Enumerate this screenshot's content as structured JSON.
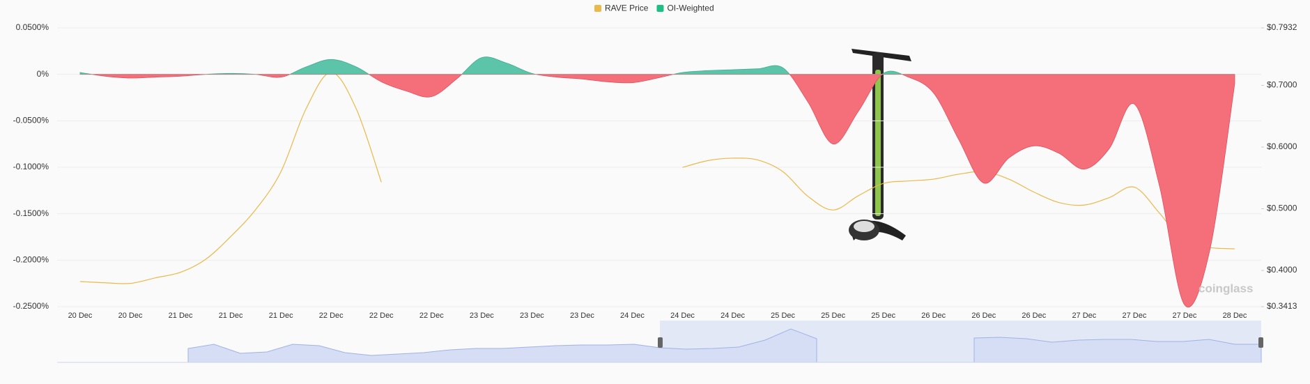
{
  "chart_data": {
    "type": "area-line",
    "watermark": "coinglass",
    "categories": [
      "20 Dec",
      null,
      "20 Dec",
      null,
      "21 Dec",
      null,
      "21 Dec",
      null,
      "21 Dec",
      null,
      "22 Dec",
      null,
      "22 Dec",
      null,
      "22 Dec",
      null,
      "23 Dec",
      null,
      "23 Dec",
      null,
      "23 Dec",
      null,
      "24 Dec",
      null,
      "24 Dec",
      null,
      "24 Dec",
      null,
      "25 Dec",
      null,
      "25 Dec",
      null,
      "25 Dec",
      null,
      "26 Dec",
      null,
      "26 Dec",
      null,
      "26 Dec",
      null,
      "27 Dec",
      null,
      "27 Dec",
      null,
      "27 Dec",
      null,
      "28 Dec"
    ],
    "series": [
      {
        "name": "RAVE Price",
        "color": "#e9b949",
        "axis": "y2",
        "values": [
          0.382,
          0.38,
          0.379,
          0.388,
          0.397,
          0.418,
          0.455,
          0.499,
          0.56,
          0.662,
          0.721,
          0.662,
          0.543,
          null,
          null,
          null,
          null,
          null,
          null,
          null,
          null,
          null,
          null,
          null,
          0.567,
          0.578,
          0.582,
          0.579,
          0.56,
          0.52,
          0.498,
          0.521,
          0.541,
          0.545,
          0.548,
          0.556,
          0.56,
          0.548,
          0.527,
          0.51,
          0.506,
          0.518,
          0.535,
          0.493,
          0.445,
          0.437,
          0.435
        ]
      },
      {
        "name": "OI-Weighted",
        "color": "#1dbf84",
        "positive_color": "#5cc4a8",
        "negative_color": "#f46f7a",
        "values": [
          0.002,
          -0.002,
          -0.004,
          -0.003,
          -0.002,
          0,
          0.001,
          0,
          -0.003,
          0.008,
          0.016,
          0.008,
          -0.008,
          -0.018,
          -0.024,
          -0.005,
          0.018,
          0.012,
          0.001,
          -0.003,
          -0.005,
          -0.008,
          -0.009,
          -0.004,
          0.002,
          0.004,
          0.005,
          0.006,
          0.007,
          -0.03,
          -0.075,
          -0.04,
          0.001,
          -0.003,
          -0.02,
          -0.07,
          -0.117,
          -0.09,
          -0.077,
          -0.085,
          -0.102,
          -0.08,
          -0.032,
          -0.12,
          -0.248,
          -0.19,
          -0.01
        ]
      }
    ],
    "ylim": [
      -0.25,
      0.05
    ],
    "yticks": [
      {
        "value": 0.05,
        "label": "0.0500%"
      },
      {
        "value": 0,
        "label": "0%"
      },
      {
        "value": -0.05,
        "label": "-0.0500%"
      },
      {
        "value": -0.1,
        "label": "-0.1000%"
      },
      {
        "value": -0.15,
        "label": "-0.1500%"
      },
      {
        "value": -0.2,
        "label": "-0.2000%"
      },
      {
        "value": -0.25,
        "label": "-0.2500%"
      }
    ],
    "y2lim": [
      0.3413,
      0.7932
    ],
    "y2ticks": [
      {
        "value": 0.7932,
        "label": "$0.7932"
      },
      {
        "value": 0.7,
        "label": "$0.7000"
      },
      {
        "value": 0.6,
        "label": "$0.6000"
      },
      {
        "value": 0.5,
        "label": "$0.5000"
      },
      {
        "value": 0.4,
        "label": "$0.4000"
      },
      {
        "value": 0.3413,
        "label": "$0.3413"
      }
    ],
    "grid": true
  }
}
